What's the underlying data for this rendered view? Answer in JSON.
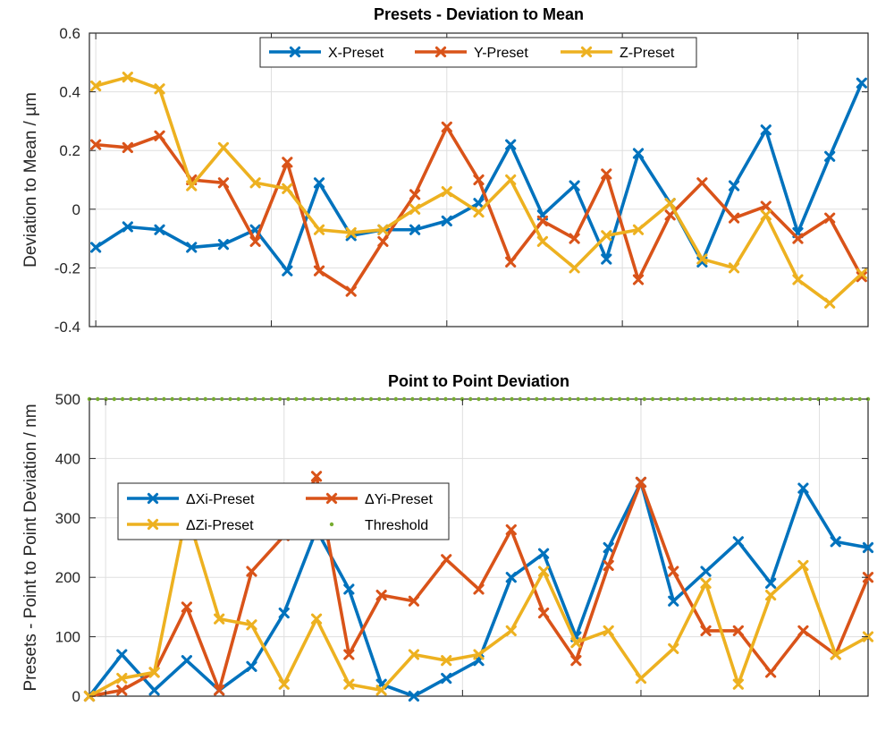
{
  "chart_data": [
    {
      "type": "line",
      "title": "Presets - Deviation to Mean",
      "ylabel": "Deviation to Mean / µm",
      "xlabel": "",
      "xlim": [
        0.8,
        25.2
      ],
      "ylim": [
        -0.4,
        0.6
      ],
      "yticks": [
        "-0.4",
        "-0.2",
        "0",
        "0.2",
        "0.4",
        "0.6"
      ],
      "ytick_values": [
        -0.4,
        -0.2,
        0,
        0.2,
        0.4,
        0.6
      ],
      "xticks": [
        1,
        6.5,
        12,
        17.5,
        23
      ],
      "grid": true,
      "legend": "top-center",
      "x": [
        1,
        2,
        3,
        4,
        5,
        6,
        7,
        8,
        9,
        10,
        11,
        12,
        13,
        14,
        15,
        16,
        17,
        18,
        19,
        20,
        21,
        22,
        23,
        24,
        25
      ],
      "series": [
        {
          "name": "X-Preset",
          "color": "#0072BD",
          "marker": "x",
          "values": [
            -0.13,
            -0.06,
            -0.07,
            -0.13,
            -0.12,
            -0.07,
            -0.21,
            0.09,
            -0.09,
            -0.07,
            -0.07,
            -0.04,
            0.02,
            0.22,
            -0.02,
            0.08,
            -0.17,
            0.19,
            0.02,
            -0.18,
            0.08,
            0.27,
            -0.08,
            0.18,
            0.43
          ]
        },
        {
          "name": "Y-Preset",
          "color": "#D95319",
          "marker": "x",
          "values": [
            0.22,
            0.21,
            0.25,
            0.1,
            0.09,
            -0.11,
            0.16,
            -0.21,
            -0.28,
            -0.11,
            0.05,
            0.28,
            0.1,
            -0.18,
            -0.04,
            -0.1,
            0.12,
            -0.24,
            -0.02,
            0.09,
            -0.03,
            0.01,
            -0.1,
            -0.03,
            -0.23
          ]
        },
        {
          "name": "Z-Preset",
          "color": "#EDB120",
          "marker": "x",
          "values": [
            0.42,
            0.45,
            0.41,
            0.08,
            0.21,
            0.09,
            0.07,
            -0.07,
            -0.08,
            -0.07,
            0.0,
            0.06,
            -0.01,
            0.1,
            -0.11,
            -0.2,
            -0.09,
            -0.07,
            0.02,
            -0.17,
            -0.2,
            -0.02,
            -0.24,
            -0.32,
            -0.22
          ]
        }
      ]
    },
    {
      "type": "line",
      "title": "Point to Point Deviation",
      "ylabel": "Presets - Point to Point Deviation / nm",
      "xlabel": "",
      "xlim": [
        1,
        25
      ],
      "ylim": [
        0,
        500
      ],
      "yticks": [
        "0",
        "100",
        "200",
        "300",
        "400",
        "500"
      ],
      "ytick_values": [
        0,
        100,
        200,
        300,
        400,
        500
      ],
      "xticks": [
        1.5,
        7,
        12.5,
        18,
        23.5
      ],
      "grid": true,
      "legend": "center-left",
      "x": [
        1,
        2,
        3,
        4,
        5,
        6,
        7,
        8,
        9,
        10,
        11,
        12,
        13,
        14,
        15,
        16,
        17,
        18,
        19,
        20,
        21,
        22,
        23,
        24,
        25
      ],
      "series": [
        {
          "name": "ΔXi-Preset",
          "color": "#0072BD",
          "marker": "x",
          "values": [
            0,
            70,
            10,
            60,
            10,
            50,
            140,
            280,
            180,
            20,
            0,
            30,
            60,
            200,
            240,
            100,
            250,
            360,
            160,
            210,
            260,
            190,
            350,
            260,
            250
          ]
        },
        {
          "name": "ΔYi-Preset",
          "color": "#D95319",
          "marker": "x",
          "values": [
            0,
            10,
            40,
            150,
            10,
            210,
            270,
            370,
            70,
            170,
            160,
            230,
            180,
            280,
            140,
            60,
            220,
            360,
            210,
            110,
            110,
            40,
            110,
            70,
            200
          ]
        },
        {
          "name": "ΔZi-Preset",
          "color": "#EDB120",
          "marker": "x",
          "values": [
            0,
            30,
            40,
            310,
            130,
            120,
            20,
            130,
            20,
            10,
            70,
            60,
            70,
            110,
            210,
            90,
            110,
            30,
            80,
            190,
            20,
            170,
            220,
            70,
            100
          ]
        },
        {
          "name": "Threshold",
          "color": "#77AC30",
          "marker": "dot",
          "values": [
            500,
            500,
            500,
            500,
            500,
            500,
            500,
            500,
            500,
            500,
            500,
            500,
            500,
            500,
            500,
            500,
            500,
            500,
            500,
            500,
            500,
            500,
            500,
            500,
            500
          ]
        }
      ]
    }
  ]
}
